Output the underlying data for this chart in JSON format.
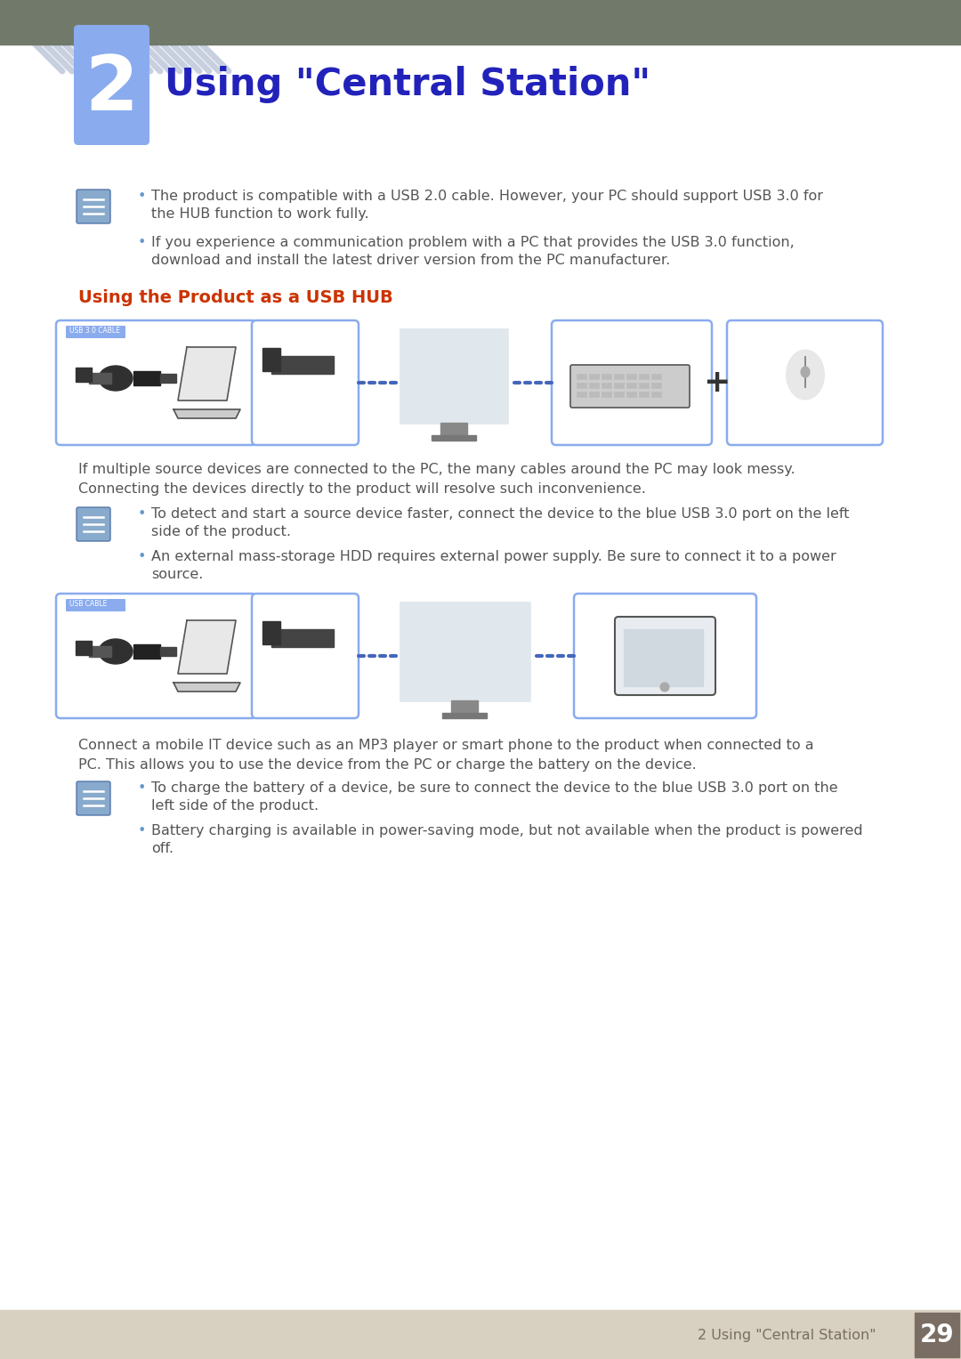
{
  "title": "Using \"Central Station\"",
  "chapter_num": "2",
  "chapter_tab_color": "#8aabee",
  "chapter_title_color": "#2222bb",
  "page_bg": "#ffffff",
  "footer_bg": "#d8d0c0",
  "footer_text": "2 Using \"Central Station\"",
  "footer_text_color": "#7a6e64",
  "footer_num": "29",
  "footer_num_bg": "#7a6e64",
  "footer_num_color": "#ffffff",
  "header_bar_color": "#717a6a",
  "section_title": "Using the Product as a USB HUB",
  "section_title_color": "#cc3300",
  "bullet_color": "#6699cc",
  "text_color": "#555555",
  "note1_line1": "The product is compatible with a USB 2.0 cable. However, your PC should support USB 3.0 for",
  "note1_line2": "the HUB function to work fully.",
  "note2_line1": "If you experience a communication problem with a PC that provides the USB 3.0 function,",
  "note2_line2": "download and install the latest driver version from the PC manufacturer.",
  "para1_line1": "If multiple source devices are connected to the PC, the many cables around the PC may look messy.",
  "para1_line2": "Connecting the devices directly to the product will resolve such inconvenience.",
  "note3_line1": "To detect and start a source device faster, connect the device to the blue USB 3.0 port on the left",
  "note3_line2": "side of the product.",
  "note4_line1": "An external mass-storage HDD requires external power supply. Be sure to connect it to a power",
  "note4_line2": "source.",
  "para2_line1": "Connect a mobile IT device such as an MP3 player or smart phone to the product when connected to a",
  "para2_line2": "PC. This allows you to use the device from the PC or charge the battery on the device.",
  "note5_line1": "To charge the battery of a device, be sure to connect the device to the blue USB 3.0 port on the",
  "note5_line2": "left side of the product.",
  "note6_line1": "Battery charging is available in power-saving mode, but not available when the product is powered",
  "note6_line2": "off.",
  "diag_dash_color": "#4466bb",
  "diag_box_color": "#8aabee",
  "diag_box_fill": "#ffffff",
  "stripe_color": "#c8d0e0"
}
